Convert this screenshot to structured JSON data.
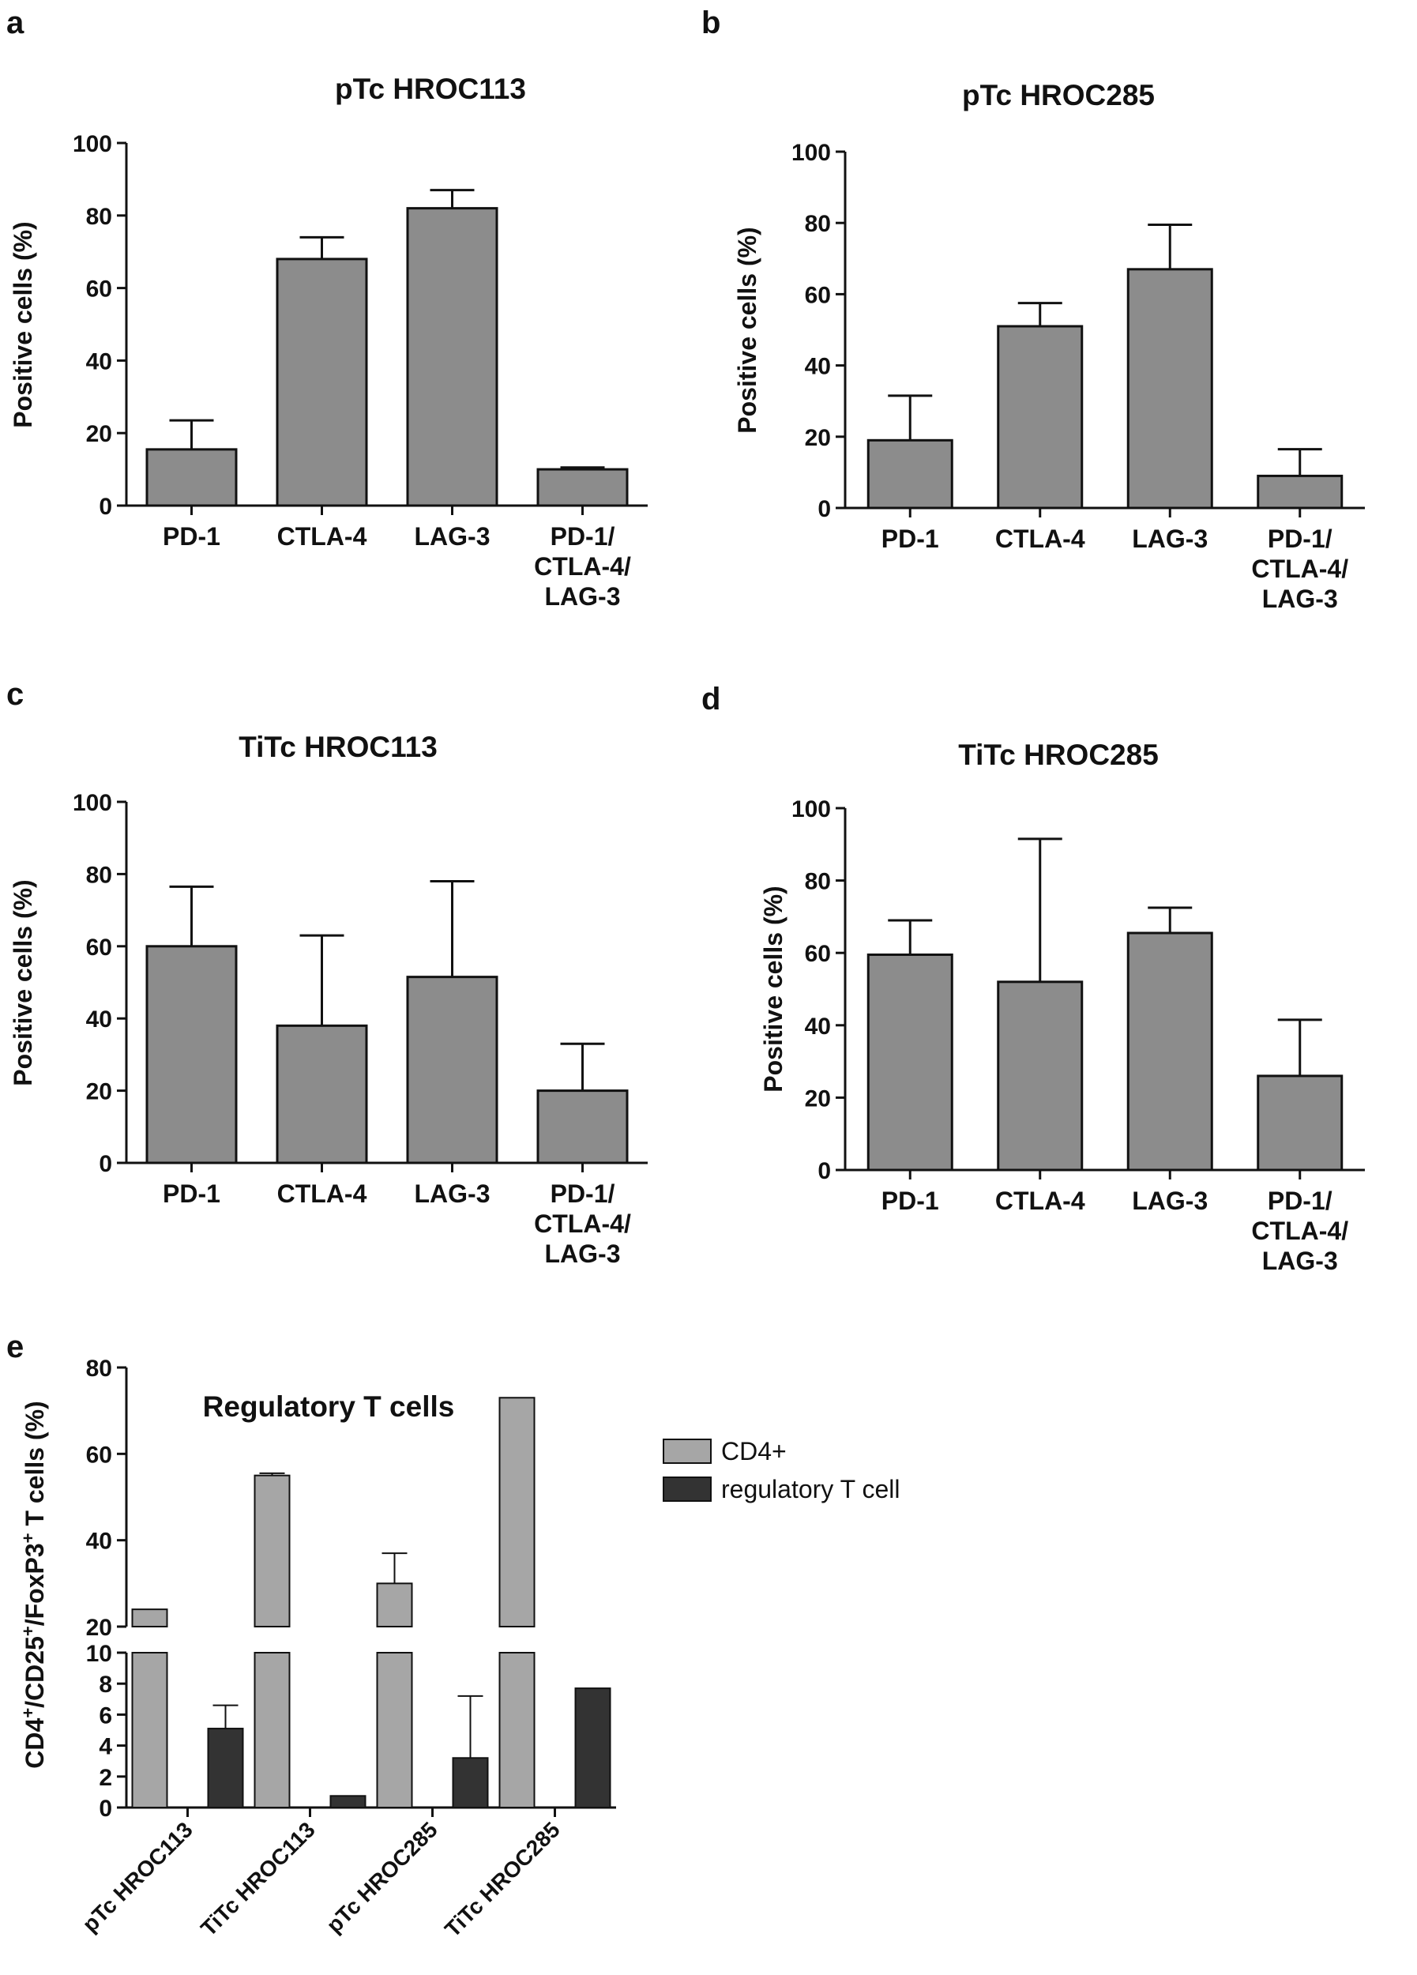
{
  "colors": {
    "bar_gray": "#8c8c8c",
    "bar_light": "#a6a6a6",
    "bar_dark": "#333333",
    "axis": "#111111"
  },
  "chart_data": [
    {
      "id": "a",
      "type": "bar",
      "panel_letter": "a",
      "title": "pTc HROC113",
      "ylabel": "Positive cells (%)",
      "ylim": [
        0,
        100
      ],
      "yticks": [
        0,
        20,
        40,
        60,
        80,
        100
      ],
      "categories": [
        "PD-1",
        "CTLA-4",
        "LAG-3",
        "PD-1/\nCTLA-4/\nLAG-3"
      ],
      "values": [
        15.5,
        68,
        82,
        10
      ],
      "errors": [
        8,
        6,
        5,
        0.5
      ]
    },
    {
      "id": "b",
      "type": "bar",
      "panel_letter": "b",
      "title": "pTc HROC285",
      "ylabel": "Positive cells (%)",
      "ylim": [
        0,
        100
      ],
      "yticks": [
        0,
        20,
        40,
        60,
        80,
        100
      ],
      "categories": [
        "PD-1",
        "CTLA-4",
        "LAG-3",
        "PD-1/\nCTLA-4/\nLAG-3"
      ],
      "values": [
        19,
        51,
        67,
        9
      ],
      "errors": [
        12.5,
        6.5,
        12.5,
        7.5
      ]
    },
    {
      "id": "c",
      "type": "bar",
      "panel_letter": "c",
      "title": "TiTc HROC113",
      "ylabel": "Positive cells (%)",
      "ylim": [
        0,
        100
      ],
      "yticks": [
        0,
        20,
        40,
        60,
        80,
        100
      ],
      "categories": [
        "PD-1",
        "CTLA-4",
        "LAG-3",
        "PD-1/\nCTLA-4/\nLAG-3"
      ],
      "values": [
        60,
        38,
        51.5,
        20
      ],
      "errors": [
        16.5,
        25,
        26.5,
        13
      ]
    },
    {
      "id": "d",
      "type": "bar",
      "panel_letter": "d",
      "title": "TiTc HROC285",
      "ylabel": "Positive cells (%)",
      "ylim": [
        0,
        100
      ],
      "yticks": [
        0,
        20,
        40,
        60,
        80,
        100
      ],
      "categories": [
        "PD-1",
        "CTLA-4",
        "LAG-3",
        "PD-1/\nCTLA-4/\nLAG-3"
      ],
      "values": [
        59.5,
        52,
        65.5,
        26
      ],
      "errors": [
        9.5,
        39.5,
        7,
        15.5
      ]
    },
    {
      "id": "e",
      "type": "bar",
      "panel_letter": "e",
      "title": "Regulatory  T cells",
      "ylabel_parts": [
        "CD4",
        "+",
        "/CD25",
        "+",
        "/FoxP3",
        "+",
        " T cells (%)"
      ],
      "broken_axis": {
        "lower": [
          0,
          10
        ],
        "upper": [
          20,
          80
        ]
      },
      "yticks_lower": [
        0,
        2,
        4,
        6,
        8,
        10
      ],
      "yticks_upper": [
        20,
        40,
        60,
        80
      ],
      "categories": [
        "pTc HROC113",
        "TiTc HROC113",
        "pTc HROC285",
        "TiTc HROC285"
      ],
      "series": [
        {
          "name": "CD4+",
          "values": [
            24,
            55,
            30,
            73
          ],
          "errors": [
            0,
            0.5,
            7,
            0
          ]
        },
        {
          "name": "regulatory T cell",
          "values": [
            5.1,
            0.75,
            3.2,
            7.7
          ],
          "errors": [
            1.5,
            0,
            4,
            0
          ]
        }
      ]
    }
  ]
}
